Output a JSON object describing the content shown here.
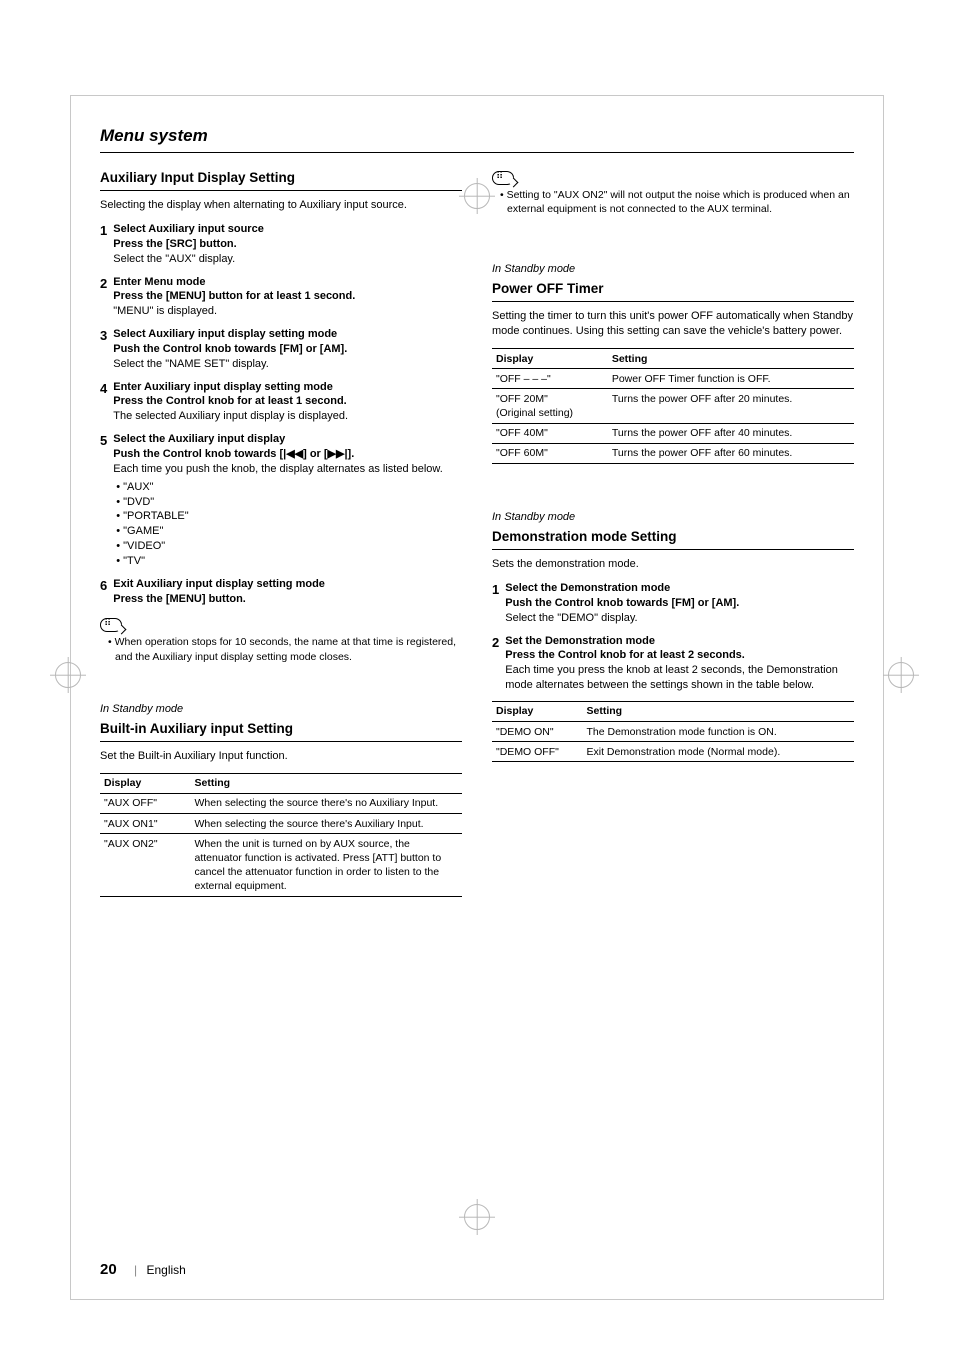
{
  "page": {
    "title": "Menu system",
    "number": "20",
    "lang": "English"
  },
  "sec_aux_display": {
    "title": "Auxiliary Input Display Setting",
    "intro": "Selecting the display when alternating to Auxiliary input source.",
    "steps": [
      {
        "n": "1",
        "head": "Select Auxiliary input source",
        "action": "Press the [SRC] button.",
        "detail": "Select the \"AUX\" display."
      },
      {
        "n": "2",
        "head": "Enter Menu mode",
        "action": "Press the [MENU] button for at least 1 second.",
        "detail": "\"MENU\" is displayed."
      },
      {
        "n": "3",
        "head": "Select Auxiliary input display setting mode",
        "action": "Push the Control knob towards [FM] or [AM].",
        "detail": "Select the \"NAME SET\" display."
      },
      {
        "n": "4",
        "head": "Enter Auxiliary input display setting mode",
        "action": "Press the Control knob for at least 1 second.",
        "detail": "The selected Auxiliary input display is displayed."
      },
      {
        "n": "5",
        "head": "Select the Auxiliary input display",
        "action": "Push the Control knob towards [|◀◀] or [▶▶|].",
        "detail": "Each time you push the knob, the display alternates as listed below.",
        "bullets": [
          "\"AUX\"",
          "\"DVD\"",
          "\"PORTABLE\"",
          "\"GAME\"",
          "\"VIDEO\"",
          "\"TV\""
        ]
      },
      {
        "n": "6",
        "head": "Exit Auxiliary input display setting mode",
        "action": "Press the [MENU] button."
      }
    ],
    "note": "When operation stops for 10 seconds, the name at that time is registered, and the Auxiliary input display setting mode closes."
  },
  "sec_builtin_aux": {
    "mode": "In Standby mode",
    "title": "Built-in Auxiliary input Setting",
    "intro": "Set the Built-in Auxiliary Input function.",
    "headers": [
      "Display",
      "Setting"
    ],
    "rows": [
      [
        "\"AUX OFF\"",
        "When selecting the source there's no Auxiliary Input."
      ],
      [
        "\"AUX ON1\"",
        "When selecting the source there's Auxiliary Input."
      ],
      [
        "\"AUX ON2\"",
        "When the unit is turned on by AUX source, the attenuator function is activated. Press [ATT] button to cancel the attenuator function in order to listen to the external equipment."
      ]
    ],
    "note": "Setting to \"AUX ON2\" will not output the noise which is produced when an external equipment is not connected to the AUX terminal."
  },
  "sec_power_off": {
    "mode": "In Standby mode",
    "title": "Power OFF Timer",
    "intro": "Setting the timer to turn this unit's power OFF automatically when Standby mode continues. Using this setting can save the vehicle's battery power.",
    "headers": [
      "Display",
      "Setting"
    ],
    "rows": [
      [
        "\"OFF – – –\"",
        "Power OFF Timer function is OFF."
      ],
      [
        "\"OFF 20M\"\n(Original setting)",
        "Turns the power OFF after 20 minutes."
      ],
      [
        "\"OFF 40M\"",
        "Turns the power OFF after 40 minutes."
      ],
      [
        "\"OFF 60M\"",
        "Turns the power OFF after 60 minutes."
      ]
    ]
  },
  "sec_demo": {
    "mode": "In Standby mode",
    "title": "Demonstration mode Setting",
    "intro": "Sets the demonstration mode.",
    "steps": [
      {
        "n": "1",
        "head": "Select the Demonstration mode",
        "action": "Push the Control knob towards [FM] or [AM].",
        "detail": "Select the \"DEMO\" display."
      },
      {
        "n": "2",
        "head": "Set the Demonstration mode",
        "action": "Press the Control knob for at least 2 seconds.",
        "detail": "Each time you press the knob at least 2 seconds, the Demonstration mode alternates between the settings shown in the table below."
      }
    ],
    "headers": [
      "Display",
      "Setting"
    ],
    "rows": [
      [
        "\"DEMO ON\"",
        "The Demonstration mode function is ON."
      ],
      [
        "\"DEMO OFF\"",
        "Exit Demonstration mode (Normal mode)."
      ]
    ]
  }
}
